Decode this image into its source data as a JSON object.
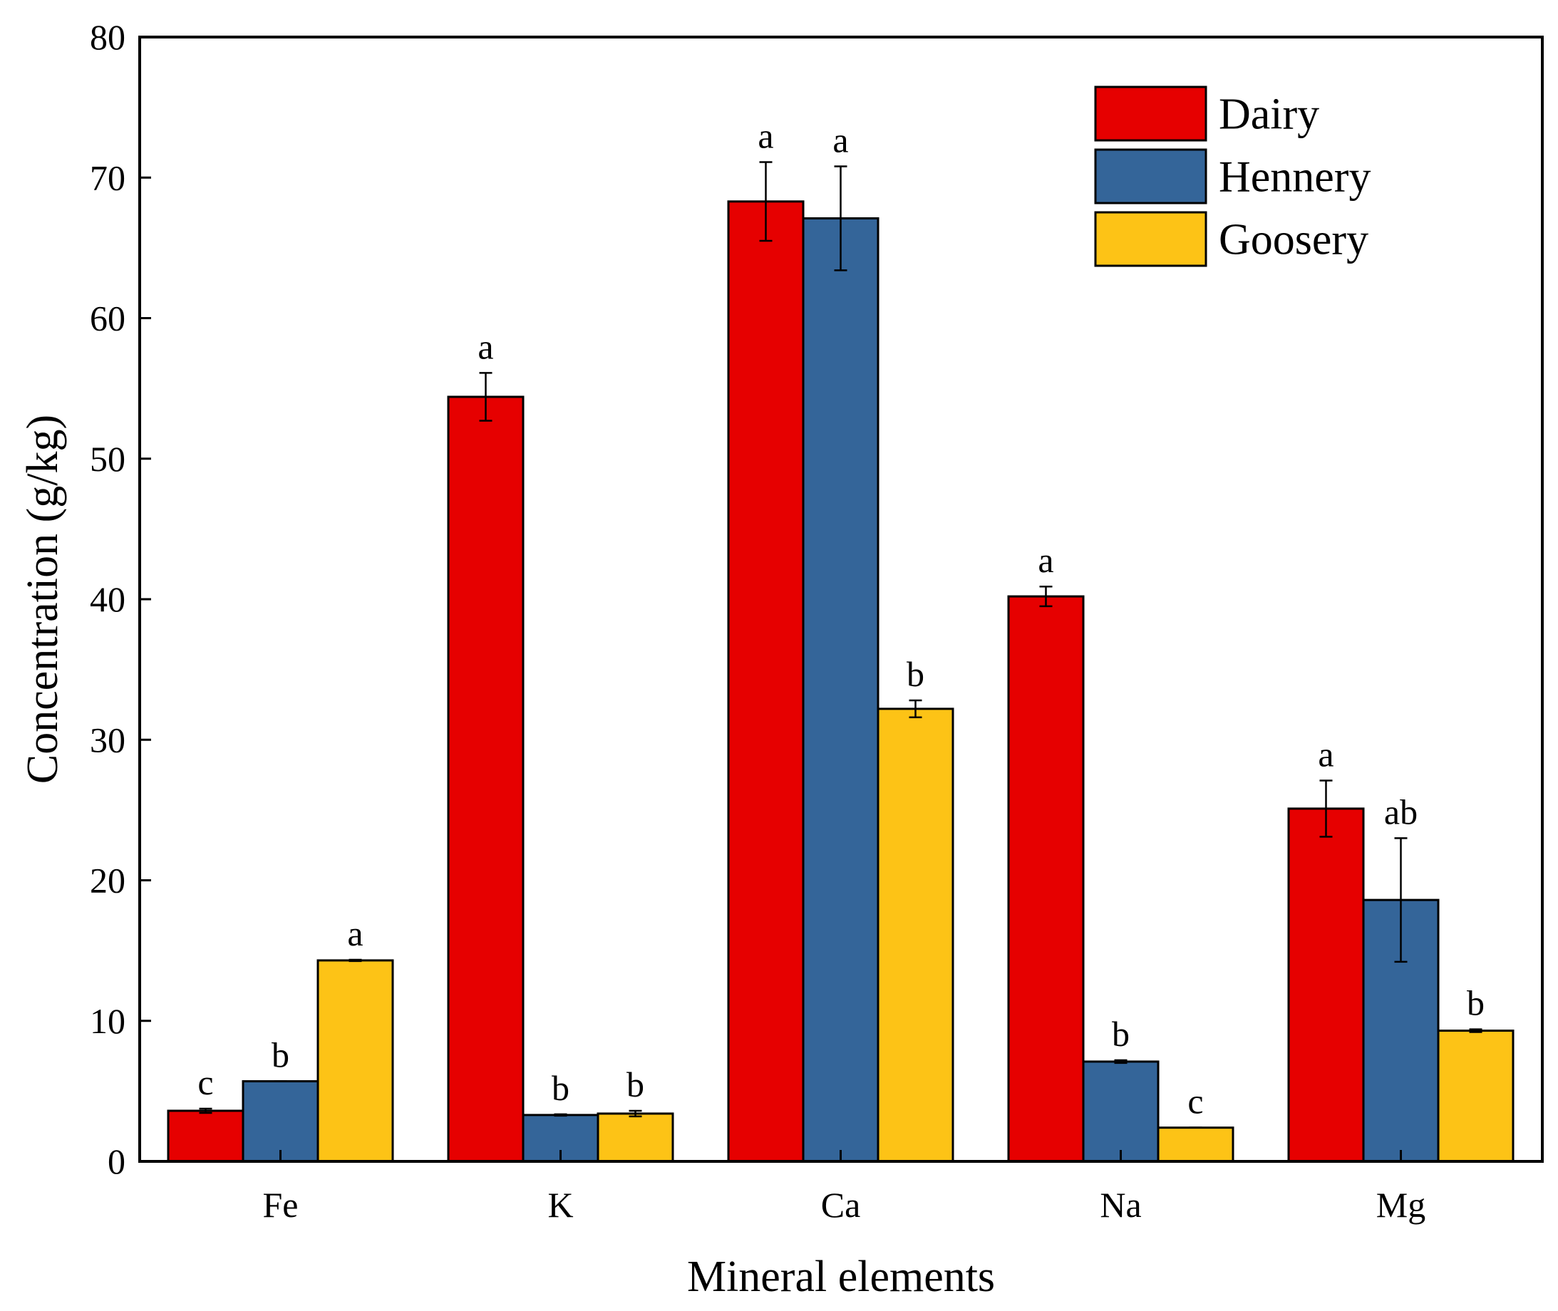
{
  "chart_data": {
    "type": "bar",
    "title": "",
    "xlabel": "Mineral elements",
    "ylabel": "Concentration (g/kg)",
    "ylim": [
      0,
      80
    ],
    "yticks": [
      0,
      10,
      20,
      30,
      40,
      50,
      60,
      70,
      80
    ],
    "categories": [
      "Fe",
      "K",
      "Ca",
      "Na",
      "Mg"
    ],
    "legend_position": "top-right",
    "series": [
      {
        "name": "Dairy",
        "color": "#e60000",
        "values": [
          3.6,
          54.4,
          68.3,
          40.2,
          25.1
        ],
        "errors": [
          0.15,
          1.7,
          2.8,
          0.7,
          2.0
        ],
        "letters": [
          "c",
          "a",
          "a",
          "a",
          "a"
        ]
      },
      {
        "name": "Hennery",
        "color": "#346599",
        "values": [
          5.7,
          3.3,
          67.1,
          7.1,
          18.6
        ],
        "errors": [
          0.0,
          0.05,
          3.7,
          0.1,
          4.4
        ],
        "letters": [
          "b",
          "b",
          "a",
          "b",
          "ab"
        ]
      },
      {
        "name": "Goosery",
        "color": "#fdc316",
        "values": [
          14.3,
          3.4,
          32.2,
          2.4,
          9.3
        ],
        "errors": [
          0.05,
          0.2,
          0.6,
          0.0,
          0.1
        ],
        "letters": [
          "a",
          "b",
          "b",
          "c",
          "b"
        ]
      }
    ]
  }
}
